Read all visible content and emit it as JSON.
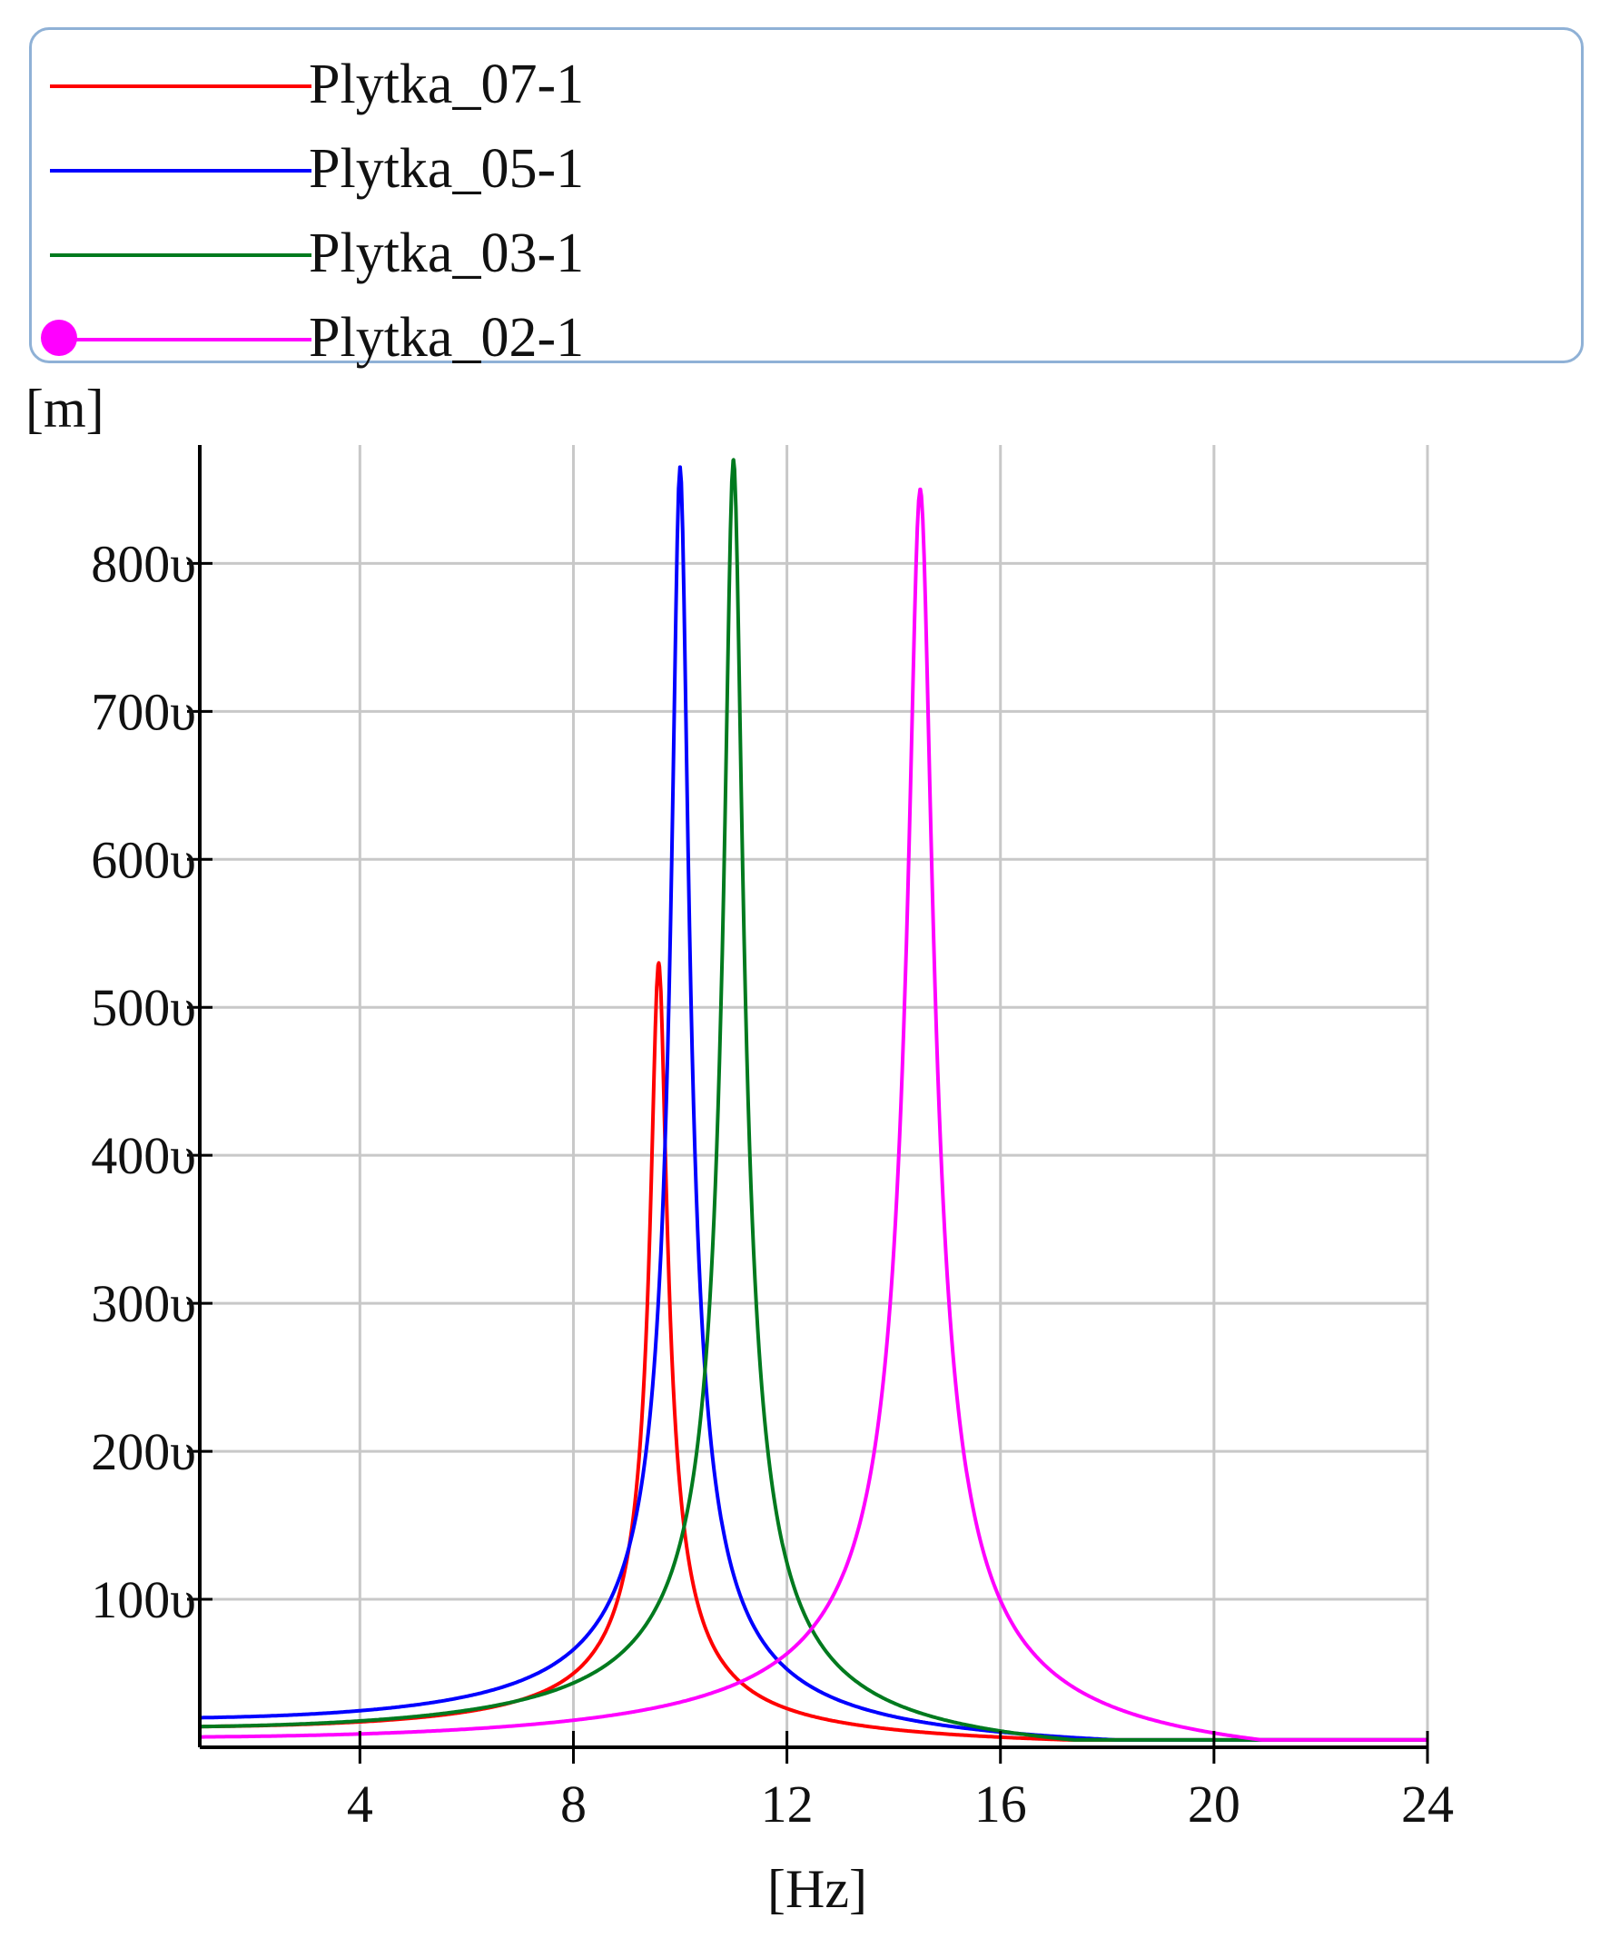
{
  "chart_data": {
    "type": "line",
    "x_unit": "[Hz]",
    "y_unit": "[m]",
    "x_ticks": [
      {
        "value": 4,
        "label": "4"
      },
      {
        "value": 8,
        "label": "8"
      },
      {
        "value": 12,
        "label": "12"
      },
      {
        "value": 16,
        "label": "16"
      },
      {
        "value": 20,
        "label": "20"
      },
      {
        "value": 24,
        "label": "24"
      }
    ],
    "y_ticks": [
      {
        "value": 100,
        "label": "100υ"
      },
      {
        "value": 200,
        "label": "200υ"
      },
      {
        "value": 300,
        "label": "300υ"
      },
      {
        "value": 400,
        "label": "400υ"
      },
      {
        "value": 500,
        "label": "500υ"
      },
      {
        "value": 600,
        "label": "600υ"
      },
      {
        "value": 700,
        "label": "700υ"
      },
      {
        "value": 800,
        "label": "800υ"
      }
    ],
    "xlim": [
      1,
      24
    ],
    "ylim": [
      0,
      880
    ],
    "grid": true,
    "legend_position": "top",
    "series": [
      {
        "name": "Plytka_07-1",
        "color": "#ff0000",
        "marker": "none",
        "resonance_hz": 9.6,
        "peak": 530,
        "start_value": 14,
        "end_value": 5
      },
      {
        "name": "Plytka_05-1",
        "color": "#0000ff",
        "marker": "none",
        "resonance_hz": 10.0,
        "peak": 865,
        "start_value": 20,
        "end_value": 5
      },
      {
        "name": "Plytka_03-1",
        "color": "#007a1e",
        "marker": "none",
        "resonance_hz": 11.0,
        "peak": 870,
        "start_value": 14,
        "end_value": 5
      },
      {
        "name": "Plytka_02-1",
        "color": "#ff00ff",
        "marker": "circle",
        "resonance_hz": 14.5,
        "peak": 850,
        "start_value": 7,
        "end_value": 5
      }
    ]
  }
}
